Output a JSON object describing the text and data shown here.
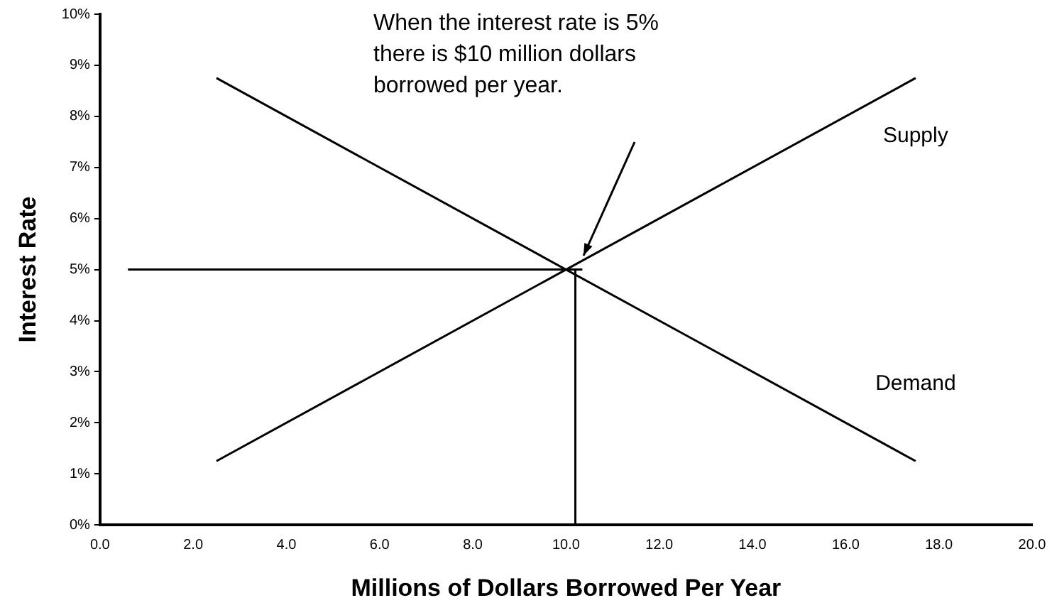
{
  "chart_data": {
    "type": "line",
    "xlabel": "Millions of Dollars Borrowed Per Year",
    "ylabel": "Interest Rate",
    "xlim": [
      0,
      20
    ],
    "xticks": [
      {
        "value": 0,
        "label": "0.0"
      },
      {
        "value": 2,
        "label": "2.0"
      },
      {
        "value": 4,
        "label": "4.0"
      },
      {
        "value": 6,
        "label": "6.0"
      },
      {
        "value": 8,
        "label": "8.0"
      },
      {
        "value": 10,
        "label": "10.0"
      },
      {
        "value": 12,
        "label": "12.0"
      },
      {
        "value": 14,
        "label": "14.0"
      },
      {
        "value": 16,
        "label": "16.0"
      },
      {
        "value": 18,
        "label": "18.0"
      },
      {
        "value": 20,
        "label": "20.0"
      }
    ],
    "ylim": [
      0,
      10
    ],
    "yticks": [
      {
        "value": 0,
        "label": "0%"
      },
      {
        "value": 1,
        "label": "1%"
      },
      {
        "value": 2,
        "label": "2%"
      },
      {
        "value": 3,
        "label": "3%"
      },
      {
        "value": 4,
        "label": "4%"
      },
      {
        "value": 5,
        "label": "5%"
      },
      {
        "value": 6,
        "label": "6%"
      },
      {
        "value": 7,
        "label": "7%"
      },
      {
        "value": 8,
        "label": "8%"
      },
      {
        "value": 9,
        "label": "9%"
      },
      {
        "value": 10,
        "label": "10%"
      }
    ],
    "series": [
      {
        "name": "Supply",
        "color": "#000000",
        "x": [
          2.5,
          17.5
        ],
        "values": [
          1.25,
          8.75
        ]
      },
      {
        "name": "Demand",
        "color": "#000000",
        "x": [
          2.5,
          17.5
        ],
        "values": [
          8.75,
          1.25
        ]
      },
      {
        "color": "#000000",
        "x": [
          0.6,
          10.35
        ],
        "values": [
          5,
          5
        ]
      },
      {
        "color": "#000000",
        "x": [
          10.2,
          10.2
        ],
        "values": [
          5,
          0
        ]
      }
    ],
    "annotations": [
      "When the interest rate is 5% there is $10 million dollars borrowed per year."
    ],
    "grid": false,
    "legend": false,
    "marker": "none",
    "line_style": "solid"
  }
}
